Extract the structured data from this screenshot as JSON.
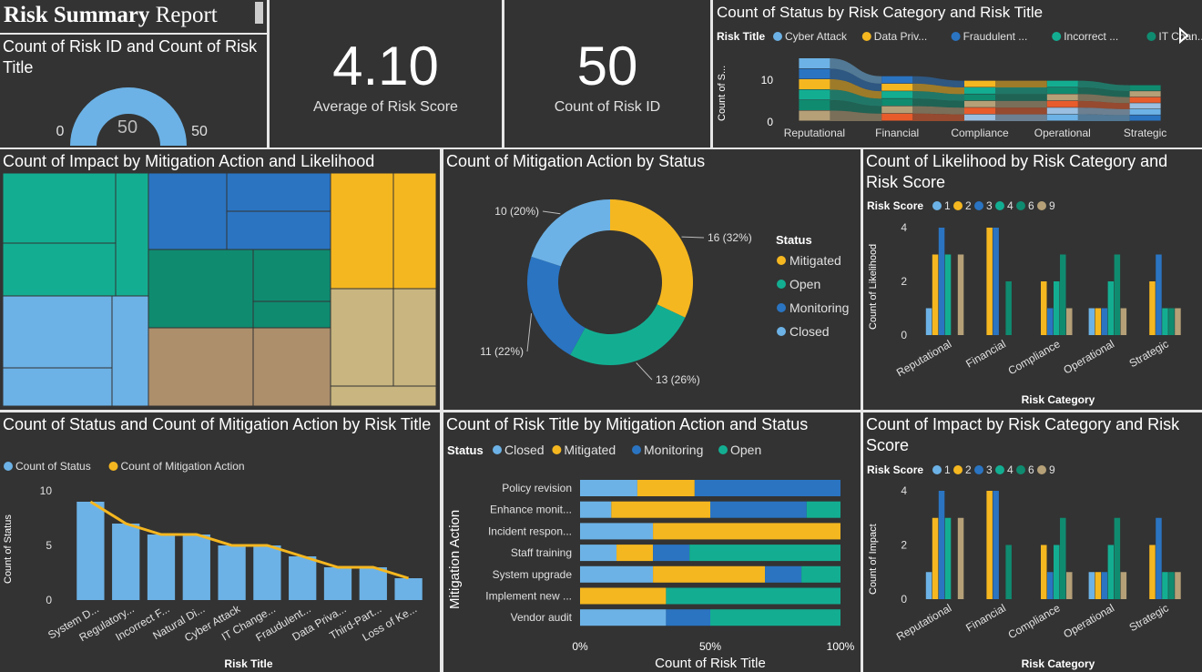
{
  "report": {
    "title_bold": "Risk Summary",
    "title_rest": " Report"
  },
  "colors": {
    "light_blue": "#6cb2e6",
    "yellow": "#f5b720",
    "blue": "#2a74c2",
    "teal": "#13ae92",
    "dark_teal": "#0f8b70",
    "tan": "#b5a078",
    "panel": "#333333"
  },
  "gauge": {
    "title": "Count of Risk ID and Count of Risk Title",
    "value": "50",
    "min": "0",
    "max": "50",
    "fill_fraction": 1.0
  },
  "kpi_score": {
    "value": "4.10",
    "label": "Average of Risk Score"
  },
  "kpi_count": {
    "value": "50",
    "label": "Count of Risk ID"
  },
  "sankey": {
    "title": "Count of Status by Risk Category and Risk Title",
    "legend_title": "Risk Title",
    "legend_items": [
      "Cyber Attack",
      "Data Priv...",
      "Fraudulent ...",
      "Incorrect ...",
      "IT Chan..."
    ],
    "legend_colors": [
      "#6cb2e6",
      "#f5b720",
      "#2a74c2",
      "#13ae92",
      "#0f8b70"
    ],
    "ylabel": "Count of S...",
    "yticks": [
      "10",
      "0"
    ],
    "categories": [
      "Reputational",
      "Financial",
      "Compliance",
      "Operational",
      "Strategic"
    ]
  },
  "treemap": {
    "title": "Count of Impact by Mitigation Action and Likelihood"
  },
  "donut": {
    "title": "Count of Mitigation Action by Status",
    "legend_title": "Status",
    "labels": [
      "16 (32%)",
      "13 (26%)",
      "11 (22%)",
      "10 (20%)"
    ]
  },
  "likelihood_chart": {
    "title": "Count of Likelihood by Risk Category and Risk Score",
    "legend_title": "Risk Score",
    "ylabel": "Count of Likelihood",
    "xlabel": "Risk Category"
  },
  "impact_chart": {
    "title": "Count of Impact by Risk Category and Risk Score",
    "legend_title": "Risk Score",
    "ylabel": "Count of Impact",
    "xlabel": "Risk Category"
  },
  "combo": {
    "title": "Count of Status and Count of Mitigation Action by Risk Title",
    "ylabel": "Count of Status",
    "xlabel": "Risk Title"
  },
  "stacked": {
    "title": "Count of Risk Title by Mitigation Action and Status",
    "legend_title": "Status",
    "ylabel": "Mitigation Action",
    "xlabel": "Count of Risk Title",
    "xticks": [
      "0%",
      "50%",
      "100%"
    ]
  },
  "chart_data": [
    {
      "id": "donut",
      "type": "pie",
      "categories": [
        "Mitigated",
        "Open",
        "Monitoring",
        "Closed"
      ],
      "values": [
        16,
        13,
        11,
        10
      ],
      "colors": [
        "#f5b720",
        "#13ae92",
        "#2a74c2",
        "#6cb2e6"
      ]
    },
    {
      "id": "likelihood",
      "type": "bar",
      "categories": [
        "Reputational",
        "Financial",
        "Compliance",
        "Operational",
        "Strategic"
      ],
      "series": [
        {
          "name": "1",
          "color": "#6cb2e6",
          "values": [
            1,
            0,
            0,
            1,
            0
          ]
        },
        {
          "name": "2",
          "color": "#f5b720",
          "values": [
            3,
            4,
            2,
            1,
            2
          ]
        },
        {
          "name": "3",
          "color": "#2a74c2",
          "values": [
            4,
            4,
            1,
            1,
            3
          ]
        },
        {
          "name": "4",
          "color": "#13ae92",
          "values": [
            3,
            0,
            2,
            2,
            1
          ]
        },
        {
          "name": "6",
          "color": "#0f8b70",
          "values": [
            0,
            2,
            3,
            3,
            1
          ]
        },
        {
          "name": "9",
          "color": "#b5a078",
          "values": [
            3,
            0,
            1,
            1,
            1
          ]
        }
      ],
      "ylim": [
        0,
        4
      ],
      "yticks": [
        0,
        2,
        4
      ]
    },
    {
      "id": "impact",
      "type": "bar",
      "categories": [
        "Reputational",
        "Financial",
        "Compliance",
        "Operational",
        "Strategic"
      ],
      "series": [
        {
          "name": "1",
          "color": "#6cb2e6",
          "values": [
            1,
            0,
            0,
            1,
            0
          ]
        },
        {
          "name": "2",
          "color": "#f5b720",
          "values": [
            3,
            4,
            2,
            1,
            2
          ]
        },
        {
          "name": "3",
          "color": "#2a74c2",
          "values": [
            4,
            4,
            1,
            1,
            3
          ]
        },
        {
          "name": "4",
          "color": "#13ae92",
          "values": [
            3,
            0,
            2,
            2,
            1
          ]
        },
        {
          "name": "6",
          "color": "#0f8b70",
          "values": [
            0,
            2,
            3,
            3,
            1
          ]
        },
        {
          "name": "9",
          "color": "#b5a078",
          "values": [
            3,
            0,
            1,
            1,
            1
          ]
        }
      ],
      "ylim": [
        0,
        4
      ],
      "yticks": [
        0,
        2,
        4
      ]
    },
    {
      "id": "combo",
      "type": "bar",
      "categories": [
        "System D...",
        "Regulatory...",
        "Incorrect F...",
        "Natural Di...",
        "Cyber Attack",
        "IT Change...",
        "Fraudulent...",
        "Data Priva...",
        "Third-Part...",
        "Loss of Ke..."
      ],
      "series": [
        {
          "name": "Count of Status",
          "color": "#6cb2e6",
          "kind": "bar",
          "values": [
            9,
            7,
            6,
            6,
            5,
            5,
            4,
            3,
            3,
            2
          ]
        },
        {
          "name": "Count of Mitigation Action",
          "color": "#f5b720",
          "kind": "line",
          "values": [
            9,
            7,
            6,
            6,
            5,
            5,
            4,
            3,
            3,
            2
          ]
        }
      ],
      "ylim": [
        0,
        10
      ],
      "yticks": [
        0,
        5,
        10
      ]
    },
    {
      "id": "stacked",
      "type": "bar",
      "orientation": "horizontal-100",
      "categories": [
        "Policy revision",
        "Enhance monit...",
        "Incident respon...",
        "Staff training",
        "System upgrade",
        "Implement new ...",
        "Vendor audit"
      ],
      "series": [
        {
          "name": "Closed",
          "color": "#6cb2e6",
          "values": [
            22,
            12,
            28,
            14,
            28,
            0,
            33
          ]
        },
        {
          "name": "Mitigated",
          "color": "#f5b720",
          "values": [
            22,
            38,
            72,
            14,
            43,
            33,
            0
          ]
        },
        {
          "name": "Monitoring",
          "color": "#2a74c2",
          "values": [
            56,
            37,
            0,
            14,
            14,
            0,
            17
          ]
        },
        {
          "name": "Open",
          "color": "#13ae92",
          "values": [
            0,
            13,
            0,
            58,
            15,
            67,
            50
          ]
        }
      ]
    },
    {
      "id": "sankey",
      "type": "area",
      "categories": [
        "Reputational",
        "Financial",
        "Compliance",
        "Operational",
        "Strategic"
      ],
      "totals": [
        14,
        10,
        9,
        9,
        8
      ]
    }
  ]
}
